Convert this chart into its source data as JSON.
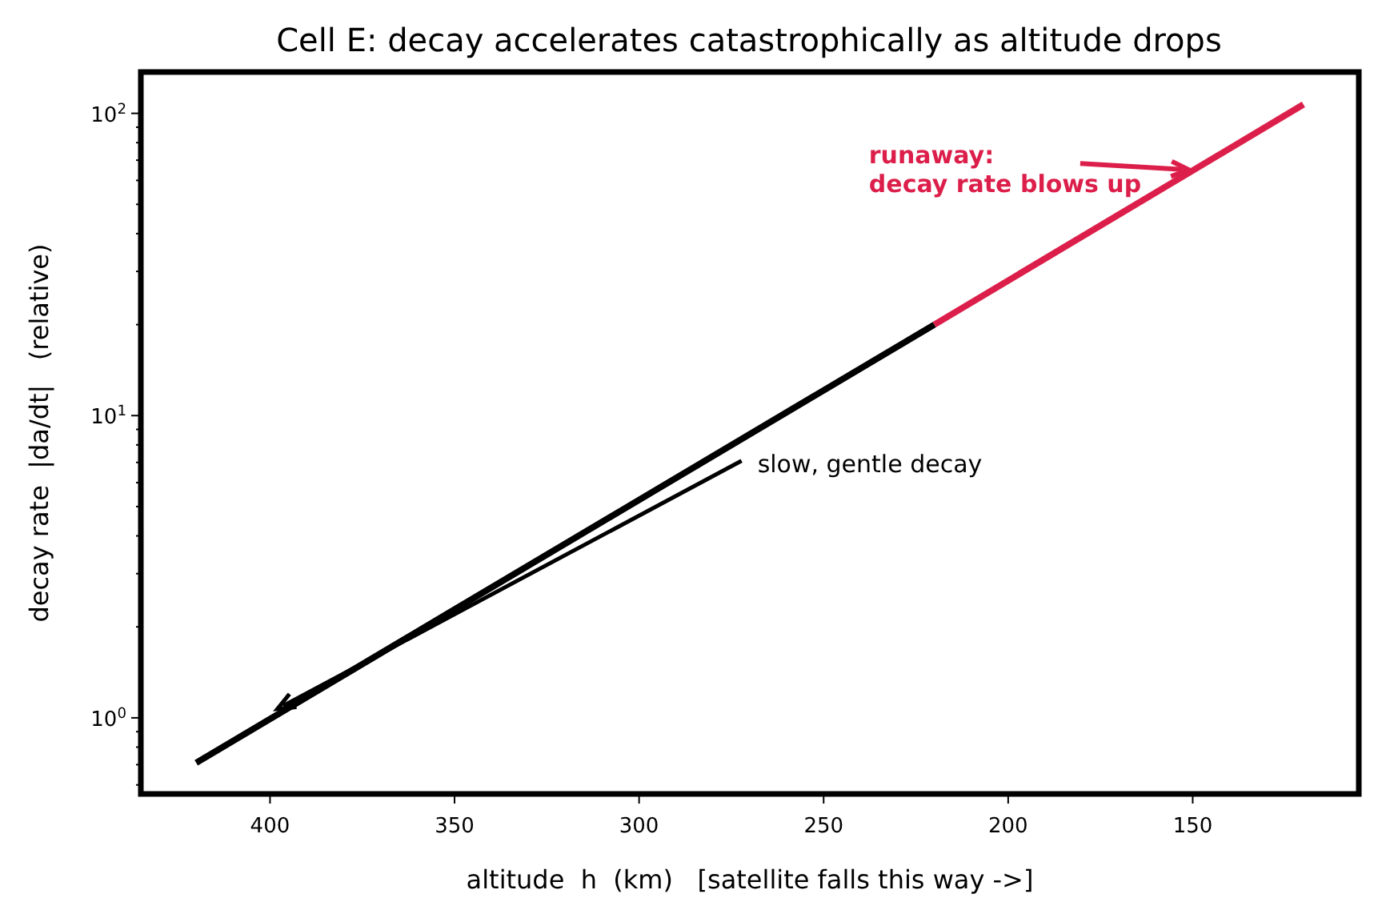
{
  "chart_data": {
    "type": "line",
    "title": "Cell E: decay accelerates catastrophically as altitude drops",
    "xlabel": "altitude  h  (km)   [satellite falls this way ->]",
    "ylabel": "decay rate  |da/dt|   (relative)",
    "log": "y",
    "grid": false,
    "line_style": "solid",
    "marker": "none",
    "xlim": [
      435,
      105
    ],
    "xticks": [
      400,
      350,
      300,
      250,
      200,
      150
    ],
    "ylim": [
      0.56,
      137
    ],
    "yticks": [
      {
        "value": 0.6,
        "label": null
      },
      {
        "value": 0.7,
        "label": null
      },
      {
        "value": 0.8,
        "label": null
      },
      {
        "value": 0.9,
        "label": null
      },
      {
        "value": 1,
        "label": "10$^{0}$"
      },
      {
        "value": 2,
        "label": null
      },
      {
        "value": 3,
        "label": null
      },
      {
        "value": 4,
        "label": null
      },
      {
        "value": 5,
        "label": null
      },
      {
        "value": 6,
        "label": null
      },
      {
        "value": 7,
        "label": null
      },
      {
        "value": 8,
        "label": null
      },
      {
        "value": 9,
        "label": null
      },
      {
        "value": 10,
        "label": "10$^{1}$"
      },
      {
        "value": 20,
        "label": null
      },
      {
        "value": 30,
        "label": null
      },
      {
        "value": 40,
        "label": null
      },
      {
        "value": 50,
        "label": null
      },
      {
        "value": 60,
        "label": null
      },
      {
        "value": 70,
        "label": null
      },
      {
        "value": 80,
        "label": null
      },
      {
        "value": 90,
        "label": null
      },
      {
        "value": 100,
        "label": "10$^{2}$"
      }
    ],
    "series": [
      {
        "color": "#000000",
        "x": [
          420,
          220
        ],
        "values": [
          0.71,
          20
        ]
      },
      {
        "color": "#dc1f4a",
        "x": [
          220,
          120
        ],
        "values": [
          20,
          107
        ]
      }
    ],
    "annotations": [
      {
        "text": "runaway:\ndecay rate blows up",
        "x": 151,
        "y": 65
      },
      {
        "text": "slow, gentle decay",
        "x": 398,
        "y": 1.07
      }
    ]
  }
}
